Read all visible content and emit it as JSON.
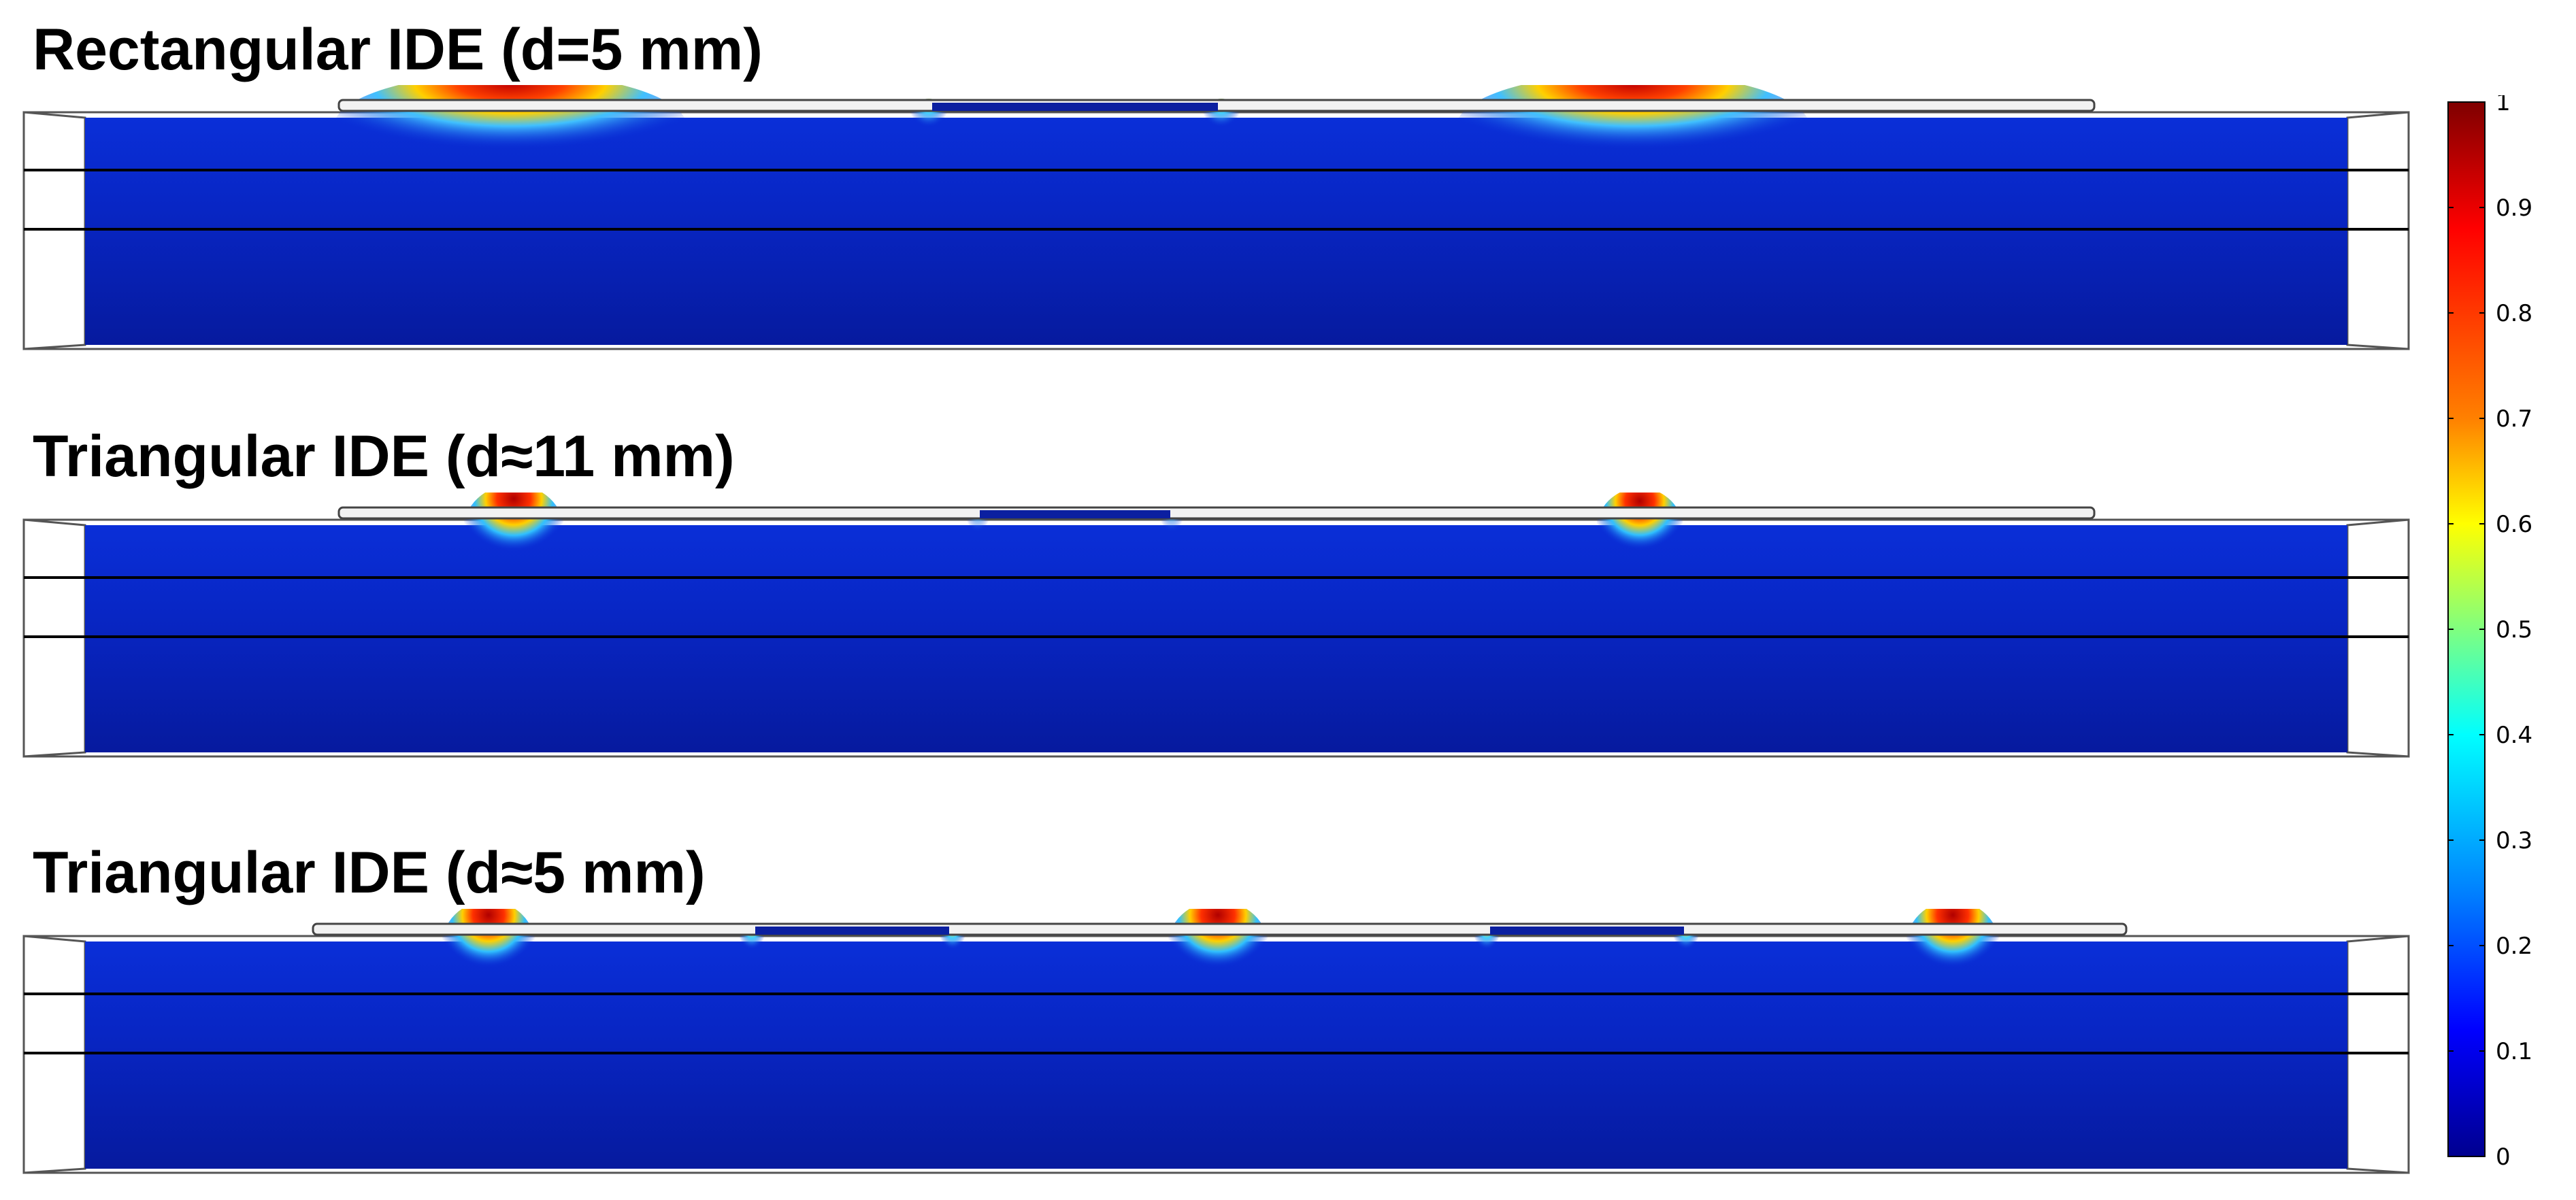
{
  "panels": [
    {
      "title": "Rectangular IDE (d=5 mm)"
    },
    {
      "title": "Triangular IDE (d≈11 mm)"
    },
    {
      "title": "Triangular IDE (d≈5 mm)"
    }
  ],
  "colorbar": {
    "ticks": [
      "1",
      "0.9",
      "0.8",
      "0.7",
      "0.6",
      "0.5",
      "0.4",
      "0.3",
      "0.2",
      "0.1",
      "0"
    ],
    "colors": [
      "#7f0000",
      "#ff0000",
      "#ff8000",
      "#ffff00",
      "#00ffff",
      "#0080ff",
      "#0000ff",
      "#00008f"
    ]
  }
}
